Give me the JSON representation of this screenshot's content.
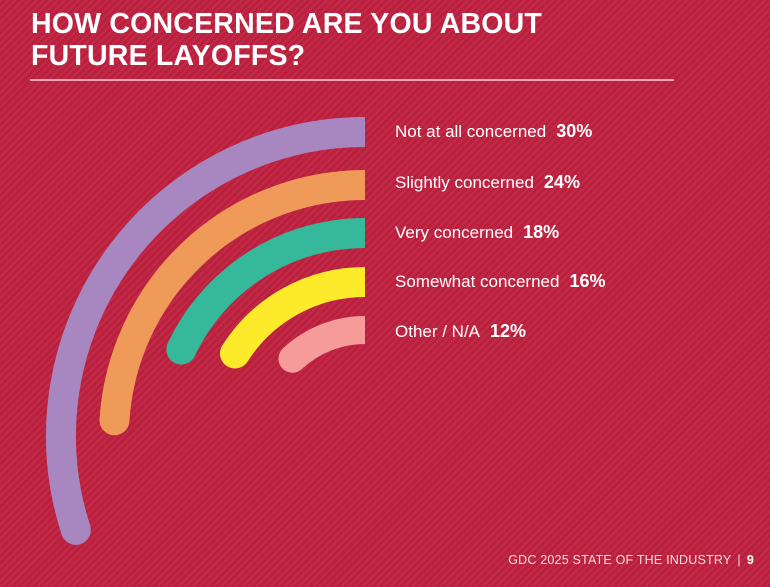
{
  "title_lines": [
    "HOW CONCERNED ARE YOU ABOUT",
    "FUTURE LAYOFFS?"
  ],
  "chart_data": {
    "type": "radial-bar",
    "title": "HOW CONCERNED ARE YOU ABOUT FUTURE LAYOFFS?",
    "categories": [
      "Not at all concerned",
      "Slightly concerned",
      "Very concerned",
      "Somewhat concerned",
      "Other / N/A"
    ],
    "values": [
      30,
      24,
      18,
      16,
      12
    ],
    "value_labels": [
      "30%",
      "24%",
      "18%",
      "16%",
      "12%"
    ],
    "unit": "%",
    "colors": [
      "#a886bf",
      "#f09a5a",
      "#35b99a",
      "#fcea2b",
      "#f59c9b"
    ]
  },
  "footer": {
    "source": "GDC 2025 STATE OF THE INDUSTRY",
    "separator": "|",
    "page": "9"
  }
}
